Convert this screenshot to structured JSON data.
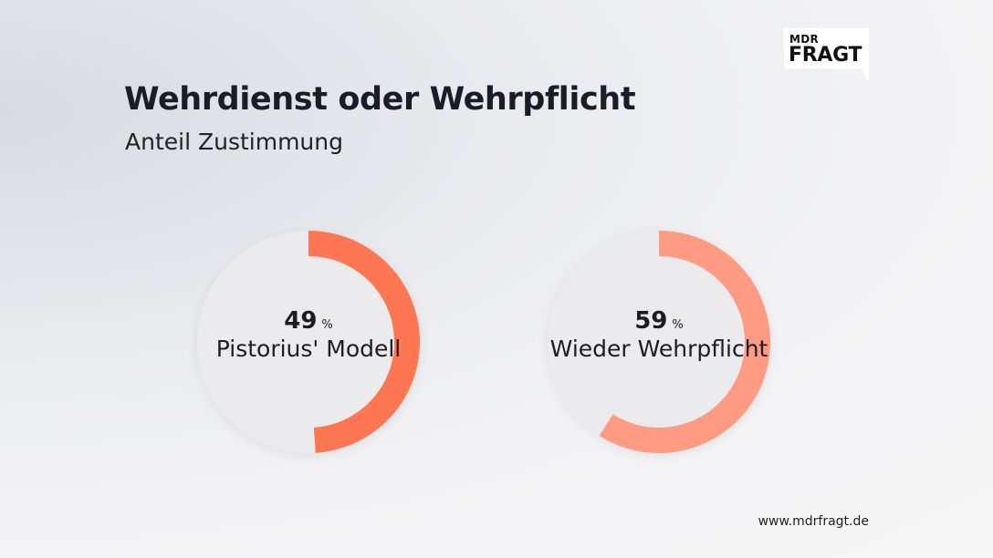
{
  "header": {
    "title": "Wehrdienst oder Wehrpflicht",
    "subtitle": "Anteil Zustimmung"
  },
  "logo": {
    "top": "MDR",
    "main": "FRAGT"
  },
  "footer": {
    "url": "www.mdrfragt.de"
  },
  "colors": {
    "track": "#ebebed",
    "series1": "#ff7652",
    "series2": "#ff9b82",
    "text": "#1c1c28"
  },
  "chart_data": {
    "type": "pie",
    "variant": "donut",
    "title": "Wehrdienst oder Wehrpflicht",
    "subtitle": "Anteil Zustimmung",
    "unit": "%",
    "series": [
      {
        "name": "Pistorius' Modell",
        "value": 49,
        "display": "49",
        "color": "#ff7652"
      },
      {
        "name": "Wieder Wehrpflicht",
        "value": 59,
        "display": "59",
        "color": "#ff9b82"
      }
    ],
    "max": 100
  }
}
